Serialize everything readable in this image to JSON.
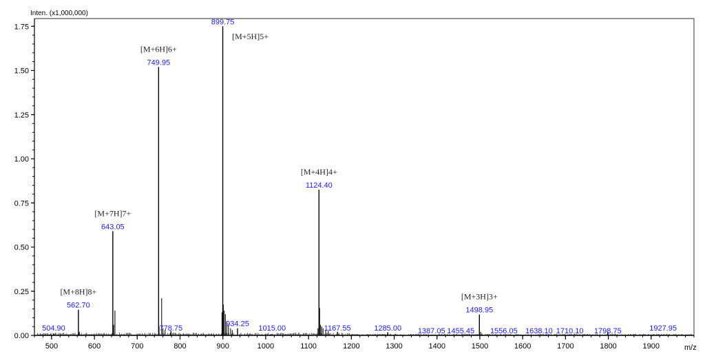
{
  "chart_data": {
    "type": "bar",
    "subtype": "mass-spectrum",
    "title": "",
    "ylabel": "Inten. (x1,000,000)",
    "xlabel": "m/z",
    "xlim": [
      460,
      2000
    ],
    "ylim": [
      0,
      1.79
    ],
    "x_ticks": [
      500,
      600,
      700,
      800,
      900,
      1000,
      1100,
      1200,
      1300,
      1400,
      1500,
      1600,
      1700,
      1800,
      1900
    ],
    "y_ticks": [
      "0.00",
      "0.25",
      "0.50",
      "0.75",
      "1.00",
      "1.25",
      "1.50",
      "1.75"
    ],
    "grid": false,
    "legend": null,
    "labeled_peaks": [
      {
        "mz": 504.9,
        "label": "504.90",
        "intensity": 0.01
      },
      {
        "mz": 562.7,
        "label": "562.70",
        "intensity": 0.145,
        "ion": "[M+8H]8+"
      },
      {
        "mz": 643.05,
        "label": "643.05",
        "intensity": 0.59,
        "ion": "[M+7H]7+"
      },
      {
        "mz": 749.95,
        "label": "749.95",
        "intensity": 1.52,
        "ion": "[M+6H]6+"
      },
      {
        "mz": 778.75,
        "label": "778.75",
        "intensity": 0.025
      },
      {
        "mz": 899.75,
        "label": "899.75",
        "intensity": 1.75,
        "ion": "[M+5H]5+"
      },
      {
        "mz": 934.25,
        "label": "934.25",
        "intensity": 0.04
      },
      {
        "mz": 1015.0,
        "label": "1015.00",
        "intensity": 0.008
      },
      {
        "mz": 1124.4,
        "label": "1124.40",
        "intensity": 0.825,
        "ion": "[M+4H]4+"
      },
      {
        "mz": 1167.55,
        "label": "1167.55",
        "intensity": 0.02
      },
      {
        "mz": 1285.0,
        "label": "1285.00",
        "intensity": 0.018
      },
      {
        "mz": 1387.05,
        "label": "1387.05",
        "intensity": 0.004
      },
      {
        "mz": 1455.45,
        "label": "1455.45",
        "intensity": 0.004
      },
      {
        "mz": 1498.95,
        "label": "1498.95",
        "intensity": 0.118,
        "ion": "[M+3H]3+"
      },
      {
        "mz": 1556.05,
        "label": "1556.05",
        "intensity": 0.005
      },
      {
        "mz": 1638.1,
        "label": "1638.10",
        "intensity": 0.004
      },
      {
        "mz": 1710.1,
        "label": "1710.10",
        "intensity": 0.004
      },
      {
        "mz": 1798.75,
        "label": "1798.75",
        "intensity": 0.02
      },
      {
        "mz": 1927.95,
        "label": "1927.95",
        "intensity": 0.004
      }
    ],
    "minor_peaks": [
      {
        "mz": 565,
        "intensity": 0.02
      },
      {
        "mz": 645,
        "intensity": 0.06
      },
      {
        "mz": 648,
        "intensity": 0.14
      },
      {
        "mz": 751,
        "intensity": 0.05
      },
      {
        "mz": 757,
        "intensity": 0.21
      },
      {
        "mz": 760,
        "intensity": 0.04
      },
      {
        "mz": 765,
        "intensity": 0.03
      },
      {
        "mz": 898,
        "intensity": 0.13
      },
      {
        "mz": 901,
        "intensity": 0.175
      },
      {
        "mz": 903,
        "intensity": 0.14
      },
      {
        "mz": 906,
        "intensity": 0.12
      },
      {
        "mz": 909,
        "intensity": 0.08
      },
      {
        "mz": 913,
        "intensity": 0.06
      },
      {
        "mz": 918,
        "intensity": 0.04
      },
      {
        "mz": 922,
        "intensity": 0.03
      },
      {
        "mz": 1122,
        "intensity": 0.04
      },
      {
        "mz": 1126,
        "intensity": 0.155
      },
      {
        "mz": 1128,
        "intensity": 0.06
      },
      {
        "mz": 1131,
        "intensity": 0.05
      },
      {
        "mz": 1134,
        "intensity": 0.04
      },
      {
        "mz": 1140,
        "intensity": 0.03
      },
      {
        "mz": 1146,
        "intensity": 0.025
      },
      {
        "mz": 1502,
        "intensity": 0.02
      },
      {
        "mz": 1505,
        "intensity": 0.01
      }
    ],
    "ion_annotations": [
      {
        "text": "[M+8H]8+",
        "mz": 562.7
      },
      {
        "text": "[M+7H]7+",
        "mz": 643.05
      },
      {
        "text": "[M+6H]6+",
        "mz": 749.95
      },
      {
        "text": "[M+5H]5+",
        "mz": 899.75
      },
      {
        "text": "[M+4H]4+",
        "mz": 1124.4
      },
      {
        "text": "[M+3H]3+",
        "mz": 1498.95
      }
    ]
  },
  "colors": {
    "peak_label": "#1a1aff",
    "peak": "#000000",
    "axis": "#000000",
    "ion_label": "#222222"
  }
}
